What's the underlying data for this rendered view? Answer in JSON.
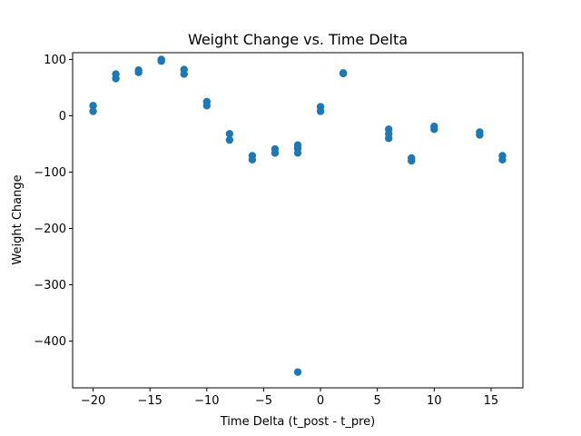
{
  "chart_data": {
    "type": "scatter",
    "title": "Weight Change vs. Time Delta",
    "xlabel": "Time Delta (t_post - t_pre)",
    "ylabel": "Weight Change",
    "xlim": [
      -21.8,
      17.8
    ],
    "ylim": [
      -483,
      112
    ],
    "xticks": [
      -20,
      -15,
      -10,
      -5,
      0,
      5,
      10,
      15
    ],
    "xtick_labels": [
      "−20",
      "−15",
      "−10",
      "−5",
      "0",
      "5",
      "10",
      "15"
    ],
    "yticks": [
      100,
      0,
      -100,
      -200,
      -300,
      -400
    ],
    "ytick_labels": [
      "100",
      "0",
      "−100",
      "−200",
      "−300",
      "−400"
    ],
    "grid": false,
    "marker_color": "#1f77b4",
    "points": [
      {
        "x": -20,
        "y": 18
      },
      {
        "x": -20,
        "y": 8
      },
      {
        "x": -18,
        "y": 74
      },
      {
        "x": -18,
        "y": 66
      },
      {
        "x": -16,
        "y": 81
      },
      {
        "x": -16,
        "y": 77
      },
      {
        "x": -14,
        "y": 100
      },
      {
        "x": -14,
        "y": 97
      },
      {
        "x": -12,
        "y": 82
      },
      {
        "x": -12,
        "y": 74
      },
      {
        "x": -10,
        "y": 25
      },
      {
        "x": -10,
        "y": 18
      },
      {
        "x": -8,
        "y": -32
      },
      {
        "x": -8,
        "y": -43
      },
      {
        "x": -6,
        "y": -71
      },
      {
        "x": -6,
        "y": -78
      },
      {
        "x": -4,
        "y": -59
      },
      {
        "x": -4,
        "y": -66
      },
      {
        "x": -2,
        "y": -52
      },
      {
        "x": -2,
        "y": -58
      },
      {
        "x": -2,
        "y": -66
      },
      {
        "x": -2,
        "y": -455
      },
      {
        "x": 0,
        "y": 16
      },
      {
        "x": 0,
        "y": 8
      },
      {
        "x": 2,
        "y": 76
      },
      {
        "x": 2,
        "y": 75
      },
      {
        "x": 6,
        "y": -24
      },
      {
        "x": 6,
        "y": -32
      },
      {
        "x": 6,
        "y": -40
      },
      {
        "x": 8,
        "y": -75
      },
      {
        "x": 8,
        "y": -80
      },
      {
        "x": 10,
        "y": -19
      },
      {
        "x": 10,
        "y": -24
      },
      {
        "x": 14,
        "y": -29
      },
      {
        "x": 14,
        "y": -34
      },
      {
        "x": 16,
        "y": -71
      },
      {
        "x": 16,
        "y": -78
      }
    ]
  }
}
